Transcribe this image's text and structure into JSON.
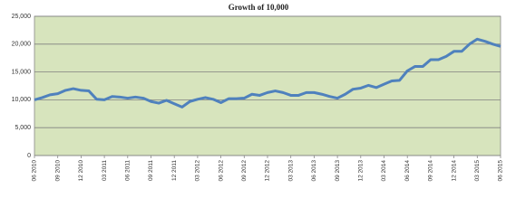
{
  "chart_data": {
    "type": "line",
    "title": "Growth of 10,000",
    "categories": [
      "06 2010",
      null,
      null,
      "09 2010",
      null,
      null,
      "12 2010",
      null,
      null,
      "03 2011",
      null,
      null,
      "06 2011",
      null,
      null,
      "09 2011",
      null,
      null,
      "12 2011",
      null,
      null,
      "03 2012",
      null,
      null,
      "06 2012",
      null,
      null,
      "09 2012",
      null,
      null,
      "12 2012",
      null,
      null,
      "03 2013",
      null,
      null,
      "06 2013",
      null,
      null,
      "09 2013",
      null,
      null,
      "12 2013",
      null,
      null,
      "03 2014",
      null,
      null,
      "06 2014",
      null,
      null,
      "09 2014",
      null,
      null,
      "12 2014",
      null,
      null,
      "03 2015",
      null,
      null,
      "06 2015"
    ],
    "series": [
      {
        "name": "Growth of 10,000",
        "color": "#4f81bd",
        "values": [
          10000,
          10400,
          10900,
          11100,
          11700,
          12000,
          11700,
          11600,
          10100,
          10000,
          10600,
          10500,
          10300,
          10500,
          10300,
          9700,
          9400,
          9900,
          9300,
          8700,
          9700,
          10100,
          10400,
          10100,
          9500,
          10200,
          10200,
          10300,
          11000,
          10800,
          11300,
          11600,
          11300,
          10800,
          10800,
          11300,
          11300,
          11000,
          10600,
          10300,
          11000,
          11900,
          12100,
          12600,
          12200,
          12800,
          13400,
          13500,
          15200,
          16000,
          16000,
          17200,
          17200,
          17800,
          18700,
          18700,
          20000,
          20900,
          20500,
          20000,
          19600
        ]
      }
    ],
    "ylim": [
      0,
      25000
    ],
    "yticks": [
      0,
      {
        "value": 5000,
        "label": "5,000"
      },
      {
        "value": 10000,
        "label": "10,000"
      },
      {
        "value": 15000,
        "label": "15,000"
      },
      {
        "value": 20000,
        "label": "20,000"
      },
      {
        "value": 25000,
        "label": "25,000"
      }
    ],
    "grid": true,
    "background": "#d7e4bd"
  }
}
